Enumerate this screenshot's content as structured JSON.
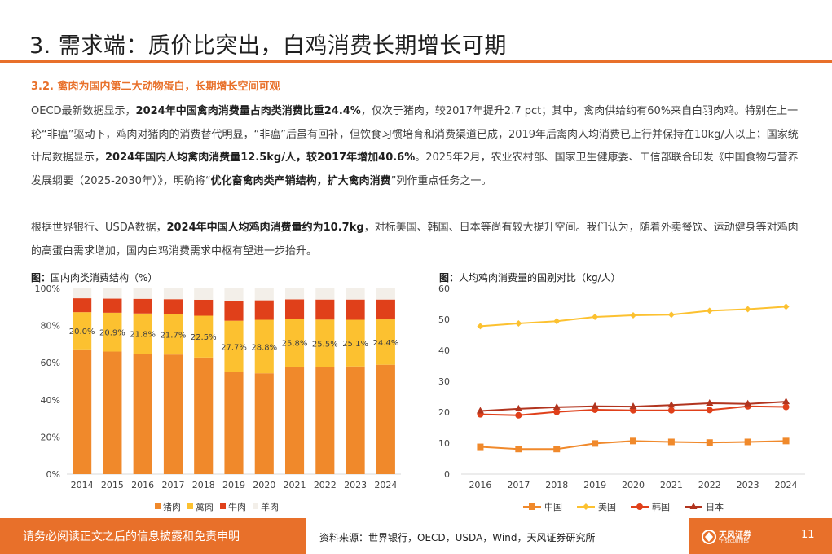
{
  "title": "3. 需求端：质价比突出，白鸡消费长期增长可期",
  "section_heading": "3.2. 禽肉为国内第二大动物蛋白，长期增长空间可观",
  "paragraph1": [
    {
      "t": "OECD最新数据显示，",
      "b": false
    },
    {
      "t": "2024年中国禽肉消费量占肉类消费比重24.4%",
      "b": true
    },
    {
      "t": "，仅次于猪肉，较2017年提升2.7 pct；其中，禽肉供给约有60%来自白羽肉鸡。特别在上一轮“非瘟”驱动下，鸡肉对猪肉的消费替代明显，“非瘟”后虽有回补，但饮食习惯培育和消费渠道已成，2019年后禽肉人均消费已上行并保持在10kg/人以上；国家统计局数据显示，",
      "b": false
    },
    {
      "t": "2024年国内人均禽肉消费量12.5kg/人，较2017年增加40.6%",
      "b": true
    },
    {
      "t": "。2025年2月，农业农村部、国家卫生健康委、工信部联合印发《中国食物与营养发展纲要（2025-2030年）》，明确将“",
      "b": false
    },
    {
      "t": "优化畜禽肉类产销结构，扩大禽肉消费",
      "b": true
    },
    {
      "t": "”列作重点任务之一。",
      "b": false
    }
  ],
  "paragraph2": [
    {
      "t": "根据世界银行、USDA数据，",
      "b": false
    },
    {
      "t": "2024年中国人均鸡肉消费量约为10.7kg",
      "b": true
    },
    {
      "t": "，对标美国、韩国、日本等尚有较大提升空间。我们认为，随着外卖餐饮、运动健身等对鸡肉的高蛋白需求增加，国内白鸡消费需求中枢有望进一步抬升。",
      "b": false
    }
  ],
  "figure1": {
    "label": "图：",
    "title": "国内肉类消费结构（%）"
  },
  "figure2": {
    "label": "图：",
    "title": "人均鸡肉消费量的国别对比（kg/人）"
  },
  "chart_data": [
    {
      "type": "bar",
      "stacked": true,
      "title": "国内肉类消费结构（%）",
      "categories": [
        "2014",
        "2015",
        "2016",
        "2017",
        "2018",
        "2019",
        "2020",
        "2021",
        "2022",
        "2023",
        "2024"
      ],
      "ylim": [
        0,
        100
      ],
      "yticks": [
        "0%",
        "20%",
        "40%",
        "60%",
        "80%",
        "100%"
      ],
      "series": [
        {
          "name": "猪肉",
          "color": "#f0892b",
          "values": [
            67.2,
            66.0,
            64.7,
            64.4,
            62.8,
            54.9,
            54.3,
            57.9,
            57.7,
            58.0,
            58.9
          ]
        },
        {
          "name": "禽肉",
          "color": "#fcc130",
          "values": [
            20.0,
            20.9,
            21.8,
            21.7,
            22.5,
            27.7,
            28.8,
            25.8,
            25.5,
            25.1,
            24.4
          ]
        },
        {
          "name": "牛肉",
          "color": "#e0401a",
          "values": [
            7.5,
            7.6,
            7.9,
            8.1,
            8.6,
            10.6,
            10.5,
            10.4,
            10.8,
            10.9,
            10.7
          ]
        },
        {
          "name": "羊肉",
          "color": "#f3efe9",
          "values": [
            5.3,
            5.5,
            5.6,
            5.8,
            6.1,
            6.8,
            6.4,
            5.9,
            6.0,
            6.0,
            6.0
          ]
        }
      ],
      "data_labels": [
        "20.0%",
        "20.9%",
        "21.8%",
        "21.7%",
        "22.5%",
        "27.7%",
        "28.8%",
        "25.8%",
        "25.5%",
        "25.1%",
        "24.4%"
      ],
      "legend": "bottom"
    },
    {
      "type": "line",
      "title": "人均鸡肉消费量的国别对比（kg/人）",
      "categories": [
        "2016",
        "2017",
        "2018",
        "2019",
        "2020",
        "2021",
        "2022",
        "2023",
        "2024"
      ],
      "ylim": [
        0,
        60
      ],
      "yticks": [
        "0",
        "10",
        "20",
        "30",
        "40",
        "50",
        "60"
      ],
      "series": [
        {
          "name": "中国",
          "color": "#f0892b",
          "marker": "square",
          "values": [
            8.8,
            8.1,
            8.1,
            9.9,
            10.7,
            10.4,
            10.2,
            10.4,
            10.7
          ]
        },
        {
          "name": "美国",
          "color": "#fcc130",
          "marker": "diamond",
          "values": [
            47.8,
            48.7,
            49.4,
            50.8,
            51.3,
            51.5,
            52.8,
            53.3,
            54.1
          ]
        },
        {
          "name": "韩国",
          "color": "#e0401a",
          "marker": "circle",
          "values": [
            19.3,
            19.0,
            20.1,
            20.8,
            20.6,
            20.6,
            20.7,
            21.9,
            21.7
          ]
        },
        {
          "name": "日本",
          "color": "#b1341e",
          "marker": "triangle",
          "values": [
            20.4,
            21.1,
            21.6,
            21.9,
            21.8,
            22.3,
            22.9,
            22.7,
            23.4
          ]
        }
      ],
      "legend": "bottom"
    }
  ],
  "footer": {
    "disclaimer": "请务必阅读正文之后的信息披露和免责申明",
    "source": "资料来源：世界银行，OECD，USDA，Wind，天风证券研究所",
    "logo_name": "天风证券",
    "logo_sub": "TF SECURITIES",
    "page_number": "11",
    "accent_color": "#e8702a"
  }
}
